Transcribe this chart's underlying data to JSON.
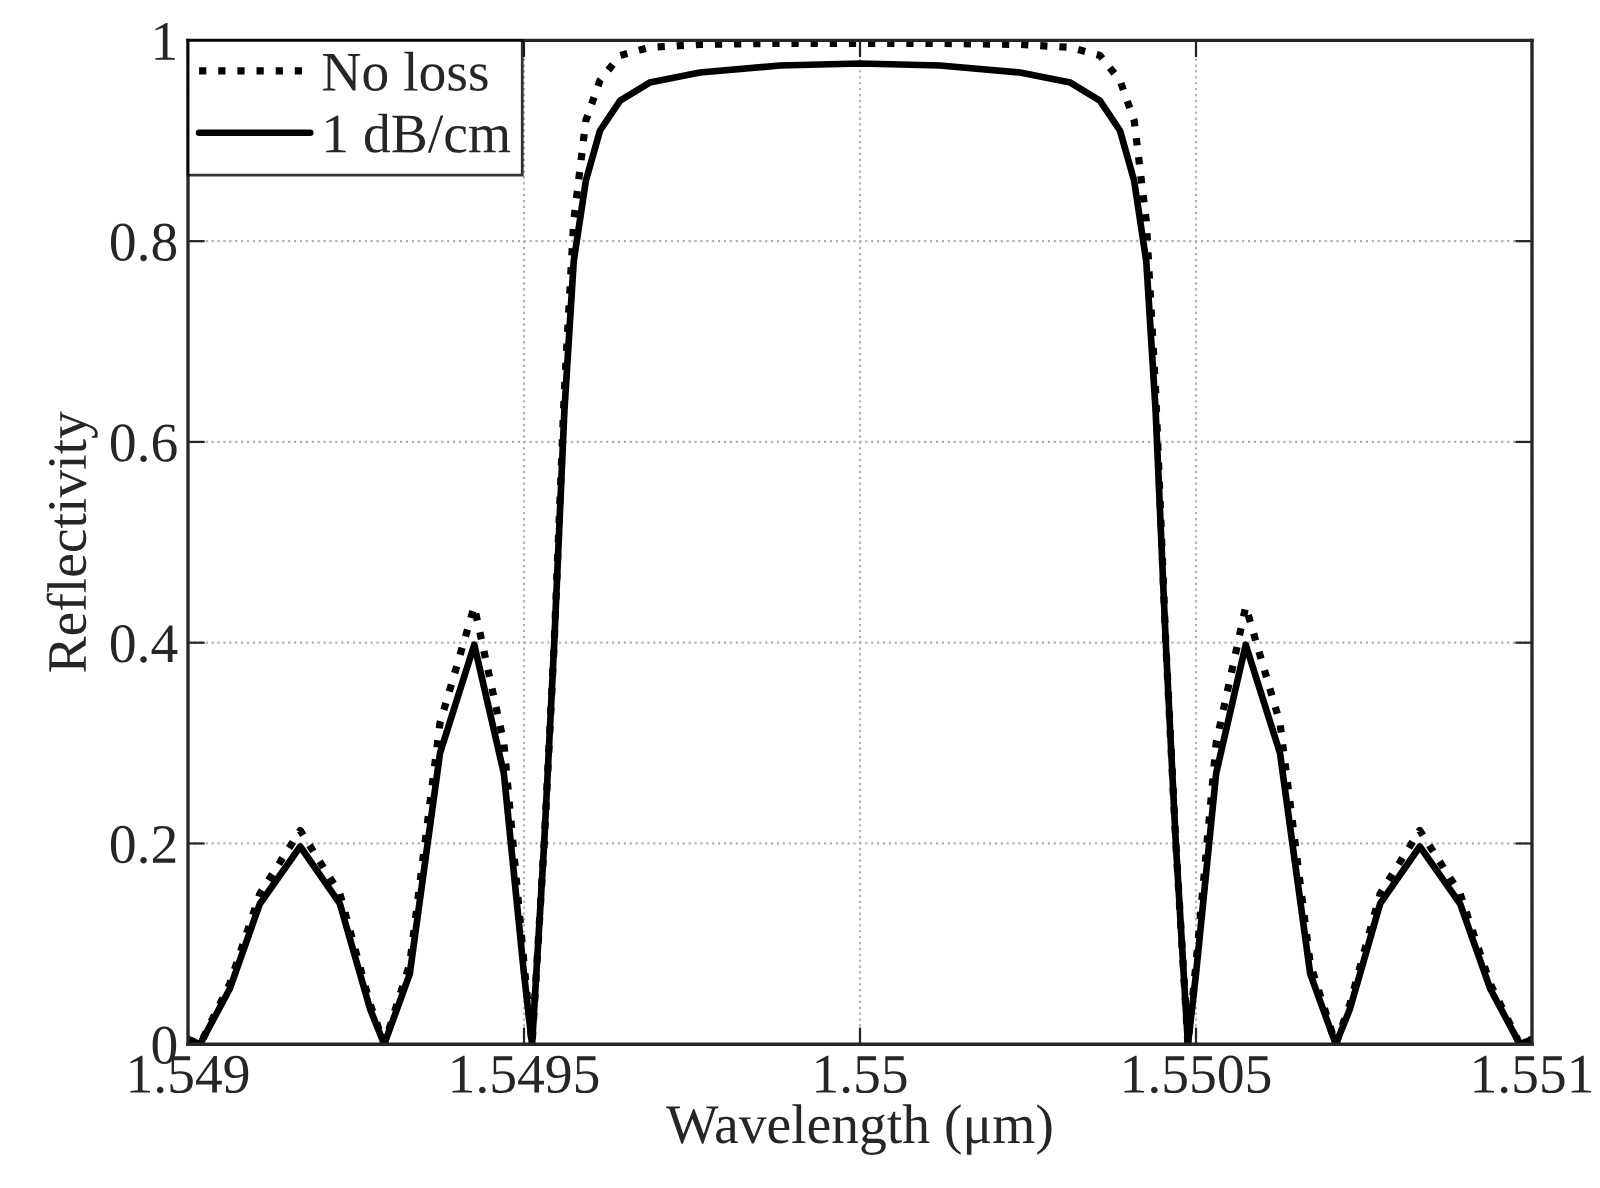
{
  "chart_data": {
    "type": "line",
    "xlabel": "Wavelength (μm)",
    "ylabel": "Reflectivity",
    "x": [
      1.549,
      1.549018,
      1.549062,
      1.549107,
      1.549167,
      1.549226,
      1.549271,
      1.549292,
      1.54933,
      1.549375,
      1.549426,
      1.54947,
      1.5495,
      1.549512,
      1.54953,
      1.549545,
      1.54956,
      1.549574,
      1.549592,
      1.549613,
      1.549643,
      1.549687,
      1.549762,
      1.549881,
      1.55,
      1.550119,
      1.550238,
      1.550313,
      1.550357,
      1.550387,
      1.550408,
      1.550426,
      1.55044,
      1.550455,
      1.55047,
      1.550488,
      1.5505,
      1.55053,
      1.550574,
      1.550625,
      1.55067,
      1.550708,
      1.550729,
      1.550774,
      1.550833,
      1.550893,
      1.550938,
      1.550982,
      1.551
    ],
    "series": [
      {
        "name": "No loss",
        "color": "#000000",
        "line_style": "dotted",
        "values": [
          0.005,
          0,
          0.06,
          0.15,
          0.213,
          0.15,
          0.04,
          0,
          0.08,
          0.32,
          0.436,
          0.3,
          0.08,
          0,
          0.2,
          0.4,
          0.65,
          0.82,
          0.92,
          0.96,
          0.985,
          0.993,
          0.996,
          0.997,
          0.997,
          0.997,
          0.996,
          0.993,
          0.985,
          0.96,
          0.92,
          0.82,
          0.65,
          0.4,
          0.2,
          0,
          0.08,
          0.3,
          0.436,
          0.32,
          0.08,
          0,
          0.04,
          0.15,
          0.213,
          0.15,
          0.06,
          0,
          0.005
        ]
      },
      {
        "name": "1 dB/cm",
        "color": "#000000",
        "line_style": "solid",
        "values": [
          0.005,
          0,
          0.055,
          0.14,
          0.197,
          0.14,
          0.035,
          0,
          0.07,
          0.29,
          0.398,
          0.27,
          0.07,
          0,
          0.2,
          0.4,
          0.63,
          0.78,
          0.86,
          0.91,
          0.94,
          0.958,
          0.968,
          0.975,
          0.977,
          0.975,
          0.968,
          0.958,
          0.94,
          0.91,
          0.86,
          0.78,
          0.63,
          0.4,
          0.2,
          0,
          0.07,
          0.27,
          0.398,
          0.29,
          0.07,
          0,
          0.035,
          0.14,
          0.197,
          0.14,
          0.055,
          0,
          0.005
        ]
      }
    ],
    "xlim": [
      1.549,
      1.551
    ],
    "xticks": [
      1.549,
      1.5495,
      1.55,
      1.5505,
      1.551
    ],
    "ylim": [
      0,
      1
    ],
    "yticks": [
      0,
      0.2,
      0.4,
      0.6,
      0.8,
      1
    ],
    "grid": true,
    "legend": "top left",
    "marker": "none"
  }
}
